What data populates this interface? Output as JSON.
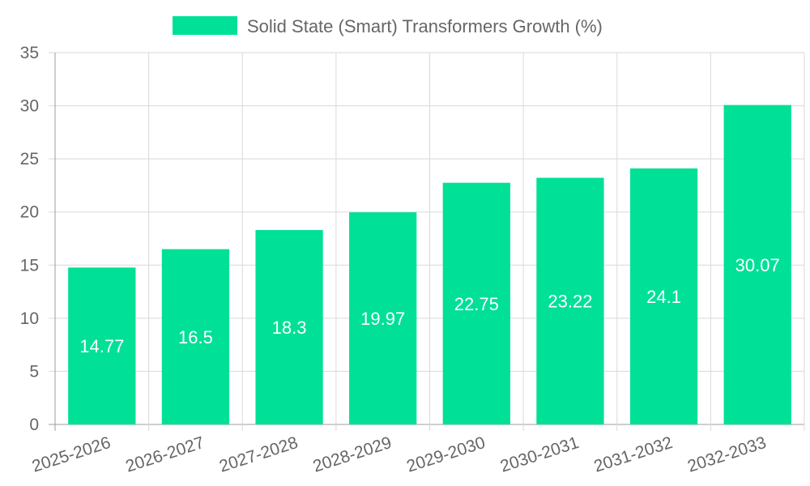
{
  "chart_data": {
    "type": "bar",
    "title": "",
    "xlabel": "",
    "ylabel": "",
    "categories": [
      "2025-2026",
      "2026-2027",
      "2027-2028",
      "2028-2029",
      "2029-2030",
      "2030-2031",
      "2031-2032",
      "2032-2033"
    ],
    "series": [
      {
        "name": "Solid State (Smart) Transformers Growth (%)",
        "values": [
          14.77,
          16.5,
          18.3,
          19.97,
          22.75,
          23.22,
          24.1,
          30.07
        ],
        "value_labels": [
          "14.77",
          "16.5",
          "18.3",
          "19.97",
          "22.75",
          "23.22",
          "24.1",
          "30.07"
        ],
        "color": "#00e096"
      }
    ],
    "ylim": [
      0,
      35
    ],
    "yticks": [
      "0",
      "5",
      "10",
      "15",
      "20",
      "25",
      "30",
      "35"
    ],
    "grid": true,
    "legend_position": "top"
  }
}
